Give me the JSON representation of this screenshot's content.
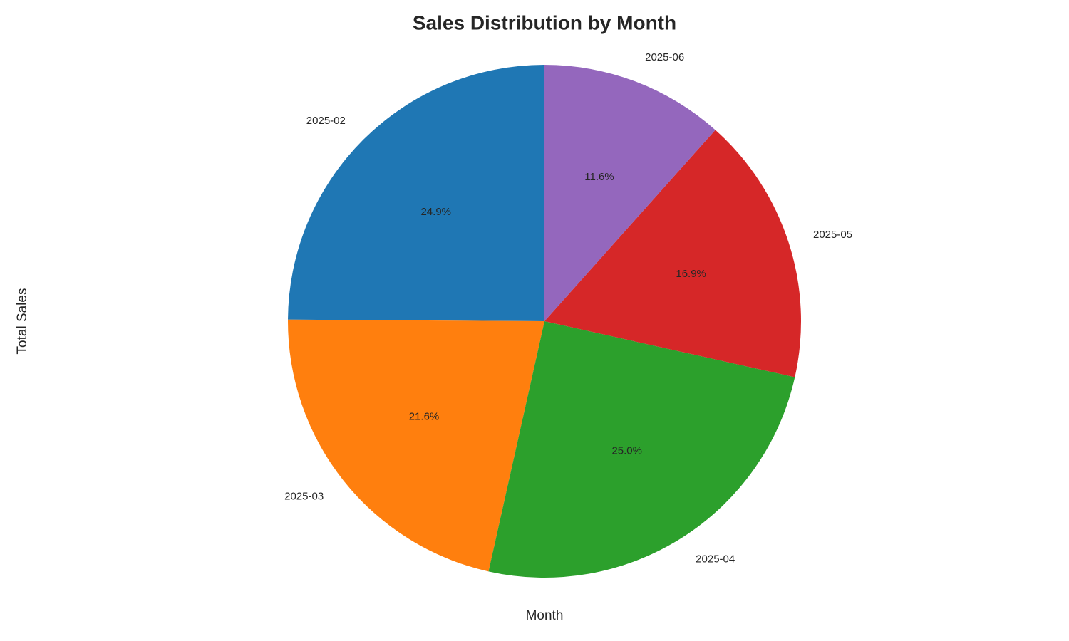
{
  "chart_data": {
    "type": "pie",
    "title": "Sales Distribution by Month",
    "x_label": "Month",
    "y_label": "Total Sales",
    "categories": [
      "2025-02",
      "2025-03",
      "2025-04",
      "2025-05",
      "2025-06"
    ],
    "values": [
      24.9,
      21.6,
      25.0,
      16.9,
      11.6
    ],
    "value_labels": [
      "24.9%",
      "21.6%",
      "25.0%",
      "16.9%",
      "11.6%"
    ],
    "colors": [
      "#1f77b4",
      "#ff7f0e",
      "#2ca02c",
      "#d62728",
      "#9467bd"
    ]
  }
}
